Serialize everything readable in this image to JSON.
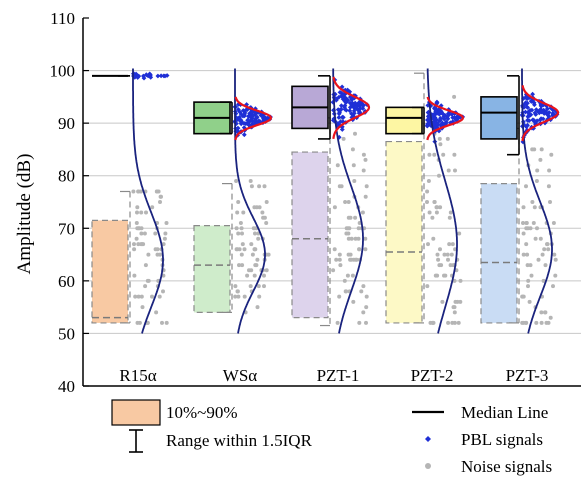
{
  "chart_data": {
    "type": "box",
    "ylabel": "Amplitude (dB)",
    "ylim": [
      40,
      110
    ],
    "yticks": [
      40,
      50,
      60,
      70,
      80,
      90,
      100,
      110
    ],
    "grid": true,
    "categories": [
      "R15α",
      "WSα",
      "PZT-1",
      "PZT-2",
      "PZT-3"
    ],
    "groups": [
      {
        "name": "R15α",
        "pbl": {
          "q10": 99,
          "q90": 99,
          "median": 99,
          "whisker_low": 99,
          "whisker_high": 99,
          "color": "#000000"
        },
        "noise": {
          "q10": 52,
          "q90": 71.5,
          "median": 53,
          "whisker_low": 52,
          "whisker_high": 77,
          "color": "#f8c9a3"
        }
      },
      {
        "name": "WSα",
        "pbl": {
          "q10": 88,
          "q90": 94,
          "median": 91,
          "whisker_low": 88,
          "whisker_high": 94,
          "color": "#90d08a"
        },
        "noise": {
          "q10": 54,
          "q90": 70.5,
          "median": 63,
          "whisker_low": 54,
          "whisker_high": 78.5,
          "color": "#cfeccb"
        }
      },
      {
        "name": "PZT-1",
        "pbl": {
          "q10": 89,
          "q90": 97,
          "median": 93,
          "whisker_low": 87,
          "whisker_high": 99,
          "color": "#b8a8d6"
        },
        "noise": {
          "q10": 53,
          "q90": 84.5,
          "median": 68,
          "whisker_low": 51.5,
          "whisker_high": 91,
          "color": "#ddd3ec"
        }
      },
      {
        "name": "PZT-2",
        "pbl": {
          "q10": 88,
          "q90": 93,
          "median": 91,
          "whisker_low": 88,
          "whisker_high": 93,
          "color": "#fdf6a3"
        },
        "noise": {
          "q10": 52,
          "q90": 86.5,
          "median": 65.5,
          "whisker_low": 52,
          "whisker_high": 99.5,
          "color": "#fdf9c6"
        }
      },
      {
        "name": "PZT-3",
        "pbl": {
          "q10": 87,
          "q90": 95,
          "median": 92,
          "whisker_low": 84,
          "whisker_high": 99,
          "color": "#88b4e4"
        },
        "noise": {
          "q10": 52,
          "q90": 78.5,
          "median": 63.5,
          "whisker_low": 52,
          "whisker_high": 89,
          "color": "#c9dcf4"
        }
      }
    ],
    "distributions": {
      "pbl": [
        {
          "mean": 99,
          "sd": 0.25
        },
        {
          "mean": 91,
          "sd": 1.4
        },
        {
          "mean": 93,
          "sd": 2.0
        },
        {
          "mean": 91,
          "sd": 1.4
        },
        {
          "mean": 92,
          "sd": 1.8
        }
      ],
      "noise": [
        {
          "mean": 64,
          "sd": 9
        },
        {
          "mean": 65,
          "sd": 7
        },
        {
          "mean": 68,
          "sd": 10
        },
        {
          "mean": 67,
          "sd": 12
        },
        {
          "mean": 66,
          "sd": 9
        }
      ]
    },
    "legend": {
      "placement": "bottom",
      "items": [
        {
          "symbol": "box",
          "label": "10%~90%"
        },
        {
          "symbol": "whisker",
          "label": "Range within 1.5IQR"
        },
        {
          "symbol": "line",
          "label": "Median Line"
        },
        {
          "symbol": "diamond",
          "label": "PBL signals"
        },
        {
          "symbol": "circle",
          "label": "Noise signals"
        }
      ]
    },
    "colors": {
      "pbl_points": "#1f2fd6",
      "noise_points": "#b5b5b5",
      "pbl_curve": "#e8141c",
      "noise_curve": "#1a237e",
      "grid": "#c8c8c8",
      "legend_box": "#f8c9a3"
    }
  }
}
